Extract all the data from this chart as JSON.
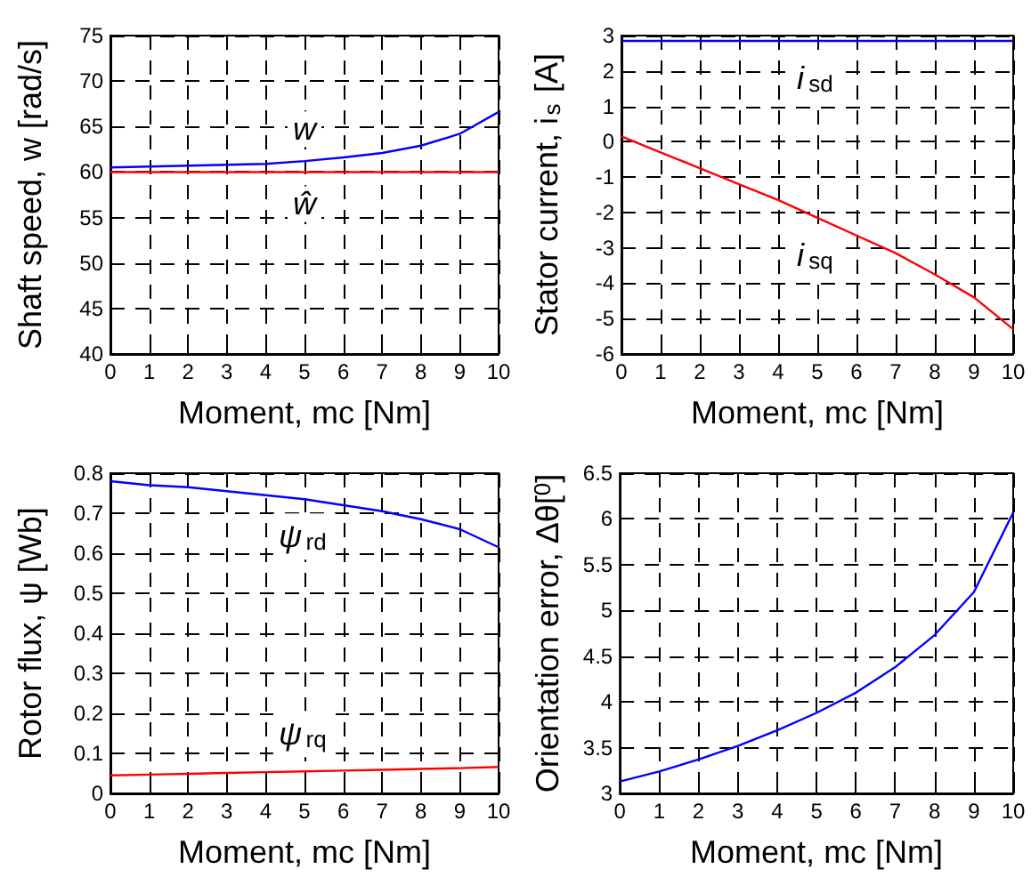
{
  "chart_data": [
    {
      "type": "line",
      "xlabel": "Moment, mc [Nm]",
      "ylabel": "Shaft speed, w [rad/s]",
      "x": [
        0,
        1,
        2,
        3,
        4,
        5,
        6,
        7,
        8,
        9,
        10
      ],
      "xlim": [
        0,
        10
      ],
      "xticks": [
        0,
        1,
        2,
        3,
        4,
        5,
        6,
        7,
        8,
        9,
        10
      ],
      "ylim": [
        40,
        75
      ],
      "yticks": [
        40,
        45,
        50,
        55,
        60,
        65,
        70,
        75
      ],
      "grid": true,
      "marker": "none",
      "series": [
        {
          "name": "w",
          "color": "#0000ff",
          "values": [
            60.5,
            60.6,
            60.7,
            60.8,
            60.9,
            61.2,
            61.6,
            62.1,
            62.9,
            64.2,
            66.6
          ]
        },
        {
          "name": "ŵ",
          "color": "#ff0000",
          "values": [
            60,
            60,
            60,
            60,
            60,
            60,
            60,
            60,
            60,
            60,
            60
          ]
        }
      ]
    },
    {
      "type": "line",
      "xlabel": "Moment, mc [Nm]",
      "ylabel": "Stator current, i$_{s}$ [A]",
      "x": [
        0,
        1,
        2,
        3,
        4,
        5,
        6,
        7,
        8,
        9,
        10
      ],
      "xlim": [
        0,
        10
      ],
      "xticks": [
        0,
        1,
        2,
        3,
        4,
        5,
        6,
        7,
        8,
        9,
        10
      ],
      "ylim": [
        -6,
        3
      ],
      "yticks": [
        -6,
        -5,
        -4,
        -3,
        -2,
        -1,
        0,
        1,
        2,
        3
      ],
      "grid": true,
      "marker": "none",
      "series": [
        {
          "name": "i$_{sd}$",
          "color": "#0000ff",
          "values": [
            2.85,
            2.85,
            2.85,
            2.85,
            2.85,
            2.85,
            2.85,
            2.85,
            2.85,
            2.85,
            2.85
          ]
        },
        {
          "name": "i$_{sq}$",
          "color": "#ff0000",
          "values": [
            0.15,
            -0.3,
            -0.75,
            -1.2,
            -1.65,
            -2.15,
            -2.65,
            -3.15,
            -3.75,
            -4.4,
            -5.3
          ]
        }
      ]
    },
    {
      "type": "line",
      "xlabel": "Moment, mc [Nm]",
      "ylabel": "Rotor flux, ψ [Wb]",
      "x": [
        0,
        1,
        2,
        3,
        4,
        5,
        6,
        7,
        8,
        9,
        10
      ],
      "xlim": [
        0,
        10
      ],
      "xticks": [
        0,
        1,
        2,
        3,
        4,
        5,
        6,
        7,
        8,
        9,
        10
      ],
      "ylim": [
        0,
        0.8
      ],
      "yticks": [
        0,
        0.1,
        0.2,
        0.3,
        0.4,
        0.5,
        0.6,
        0.7,
        0.8
      ],
      "grid": true,
      "marker": "none",
      "series": [
        {
          "name": "ψ$_{rd}$",
          "color": "#0000ff",
          "values": [
            0.78,
            0.77,
            0.765,
            0.755,
            0.745,
            0.735,
            0.72,
            0.705,
            0.685,
            0.66,
            0.615
          ]
        },
        {
          "name": "ψ$_{rq}$",
          "color": "#ff0000",
          "values": [
            0.045,
            0.047,
            0.049,
            0.051,
            0.053,
            0.055,
            0.057,
            0.059,
            0.061,
            0.063,
            0.066
          ]
        }
      ]
    },
    {
      "type": "line",
      "xlabel": "Moment, mc [Nm]",
      "ylabel": "Orientation error, Δθ[$^{0}$]",
      "x": [
        0,
        1,
        2,
        3,
        4,
        5,
        6,
        7,
        8,
        9,
        10
      ],
      "xlim": [
        0,
        10
      ],
      "xticks": [
        0,
        1,
        2,
        3,
        4,
        5,
        6,
        7,
        8,
        9,
        10
      ],
      "ylim": [
        3,
        6.5
      ],
      "yticks": [
        3,
        3.5,
        4,
        4.5,
        5,
        5.5,
        6,
        6.5
      ],
      "grid": true,
      "marker": "none",
      "series": [
        {
          "color": "#0000ff",
          "values": [
            3.13,
            3.24,
            3.37,
            3.52,
            3.69,
            3.88,
            4.1,
            4.38,
            4.73,
            5.2,
            6.07
          ]
        }
      ]
    }
  ]
}
